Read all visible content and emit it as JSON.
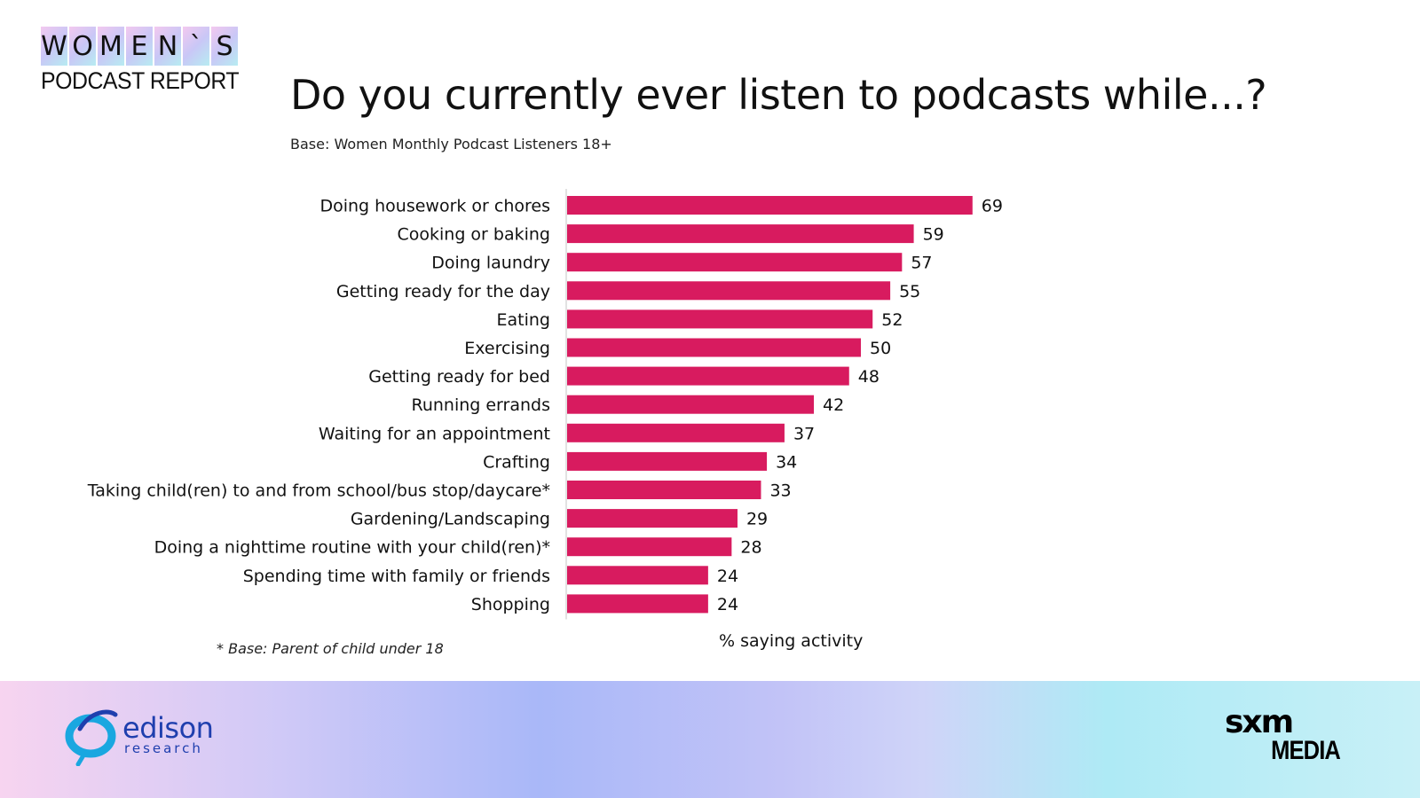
{
  "brand": {
    "letters": [
      "W",
      "O",
      "M",
      "E",
      "N",
      "`",
      "S"
    ],
    "subtitle": "PODCAST REPORT"
  },
  "title": "Do you currently ever listen to podcasts while...?",
  "base_note": "Base: Women Monthly Podcast Listeners 18+",
  "footnote": "* Base: Parent of child under 18",
  "colors": {
    "bar": "#d81b5f",
    "axis_line": "#d9d9d9"
  },
  "chart_data": {
    "type": "bar",
    "orientation": "horizontal",
    "categories": [
      "Doing housework or chores",
      "Cooking or baking",
      "Doing laundry",
      "Getting ready for the day",
      "Eating",
      "Exercising",
      "Getting ready for bed",
      "Running errands",
      "Waiting for an appointment",
      "Crafting",
      "Taking child(ren) to and from school/bus stop/daycare*",
      "Gardening/Landscaping",
      "Doing a nighttime routine with your child(ren)*",
      "Spending time with family or friends",
      "Shopping"
    ],
    "values": [
      69,
      59,
      57,
      55,
      52,
      50,
      48,
      42,
      37,
      34,
      33,
      29,
      28,
      24,
      24
    ],
    "xlabel": "% saying activity",
    "ylabel": "",
    "xlim": [
      0,
      100
    ],
    "grid": false,
    "legend": "none",
    "data_labels": true
  },
  "footer": {
    "edison_name": "edison",
    "edison_sub": "research",
    "sxm_top": "sxm",
    "sxm_bottom": "MEDIA"
  }
}
